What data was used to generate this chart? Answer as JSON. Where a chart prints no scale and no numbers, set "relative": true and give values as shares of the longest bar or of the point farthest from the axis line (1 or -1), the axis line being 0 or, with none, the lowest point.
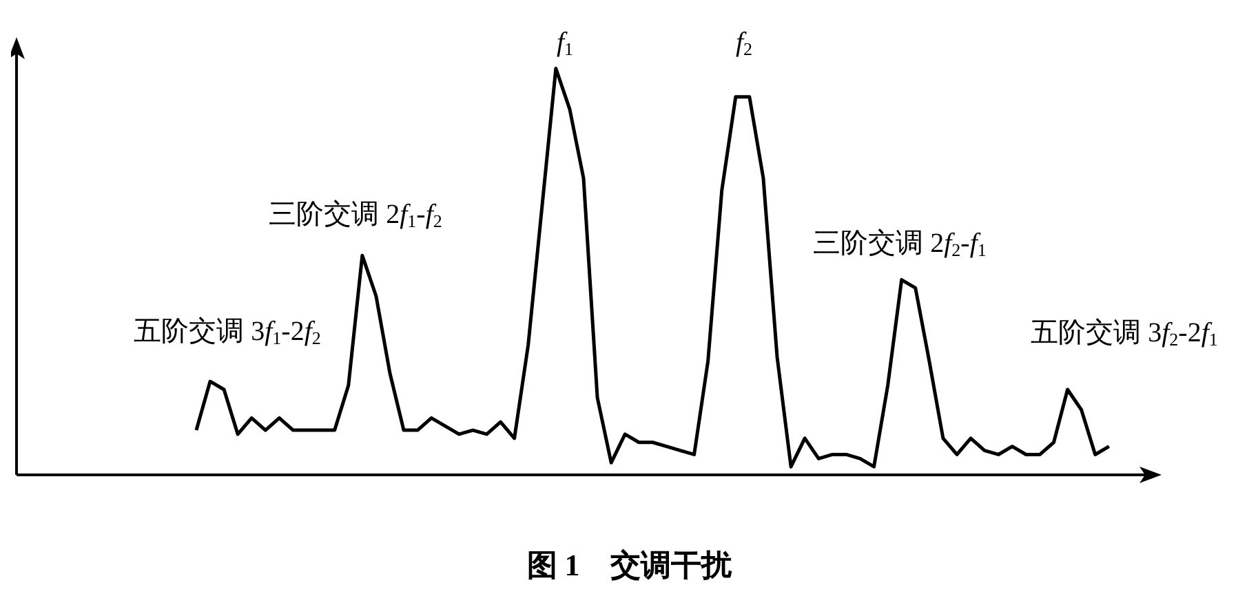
{
  "chart_data": {
    "type": "line",
    "relative": true,
    "title": "图 1　交调干扰",
    "categories": [
      null,
      null,
      null,
      null,
      null,
      null,
      null,
      null,
      null,
      null,
      null,
      null,
      null,
      null,
      null,
      null,
      null,
      null,
      null,
      null,
      null,
      null,
      null,
      null,
      null,
      null,
      null,
      null,
      null,
      null,
      null,
      null,
      null,
      null,
      null,
      null,
      null,
      null,
      null,
      null,
      null,
      null,
      null,
      null,
      null,
      null,
      null,
      null,
      null,
      null,
      null,
      null,
      null,
      null,
      null,
      null,
      null,
      null,
      null,
      null,
      null,
      null,
      null,
      null,
      null,
      null,
      null,
      null,
      null,
      null,
      null,
      null,
      null,
      null,
      null,
      null,
      null,
      null,
      null,
      null,
      null,
      null,
      null
    ],
    "series": [
      {
        "color": "#000000",
        "values": [
          null,
          null,
          null,
          null,
          null,
          null,
          null,
          null,
          null,
          null,
          null,
          null,
          null,
          0.11,
          0.23,
          0.21,
          0.1,
          0.14,
          0.11,
          0.14,
          0.11,
          0.11,
          0.11,
          0.11,
          0.22,
          0.54,
          0.44,
          0.25,
          0.11,
          0.11,
          0.14,
          0.12,
          0.1,
          0.11,
          0.1,
          0.13,
          0.09,
          0.32,
          0.66,
          1.0,
          0.9,
          0.73,
          0.19,
          0.03,
          0.1,
          0.08,
          0.08,
          0.07,
          0.06,
          0.05,
          0.28,
          0.7,
          0.93,
          0.93,
          0.73,
          0.29,
          0.02,
          0.09,
          0.04,
          0.05,
          0.05,
          0.04,
          0.02,
          0.22,
          0.48,
          0.46,
          0.28,
          0.09,
          0.05,
          0.09,
          0.06,
          0.05,
          0.07,
          0.05,
          0.05,
          0.08,
          0.21,
          0.16,
          0.05,
          0.07,
          null,
          null,
          null
        ]
      }
    ],
    "annotations": [
      "f$_{1}$",
      "f$_{2}$",
      "三阶交调 2f$_{1}$-f$_{2}$",
      "五阶交调 3f$_{1}$-2f$_{2}$",
      "三阶交调 2f$_{2}$-f$_{1}$",
      "五阶交调 3f$_{2}$-2f$_{1}$"
    ],
    "grid": false,
    "legend": false,
    "marker": "none",
    "line_style": "solid"
  }
}
